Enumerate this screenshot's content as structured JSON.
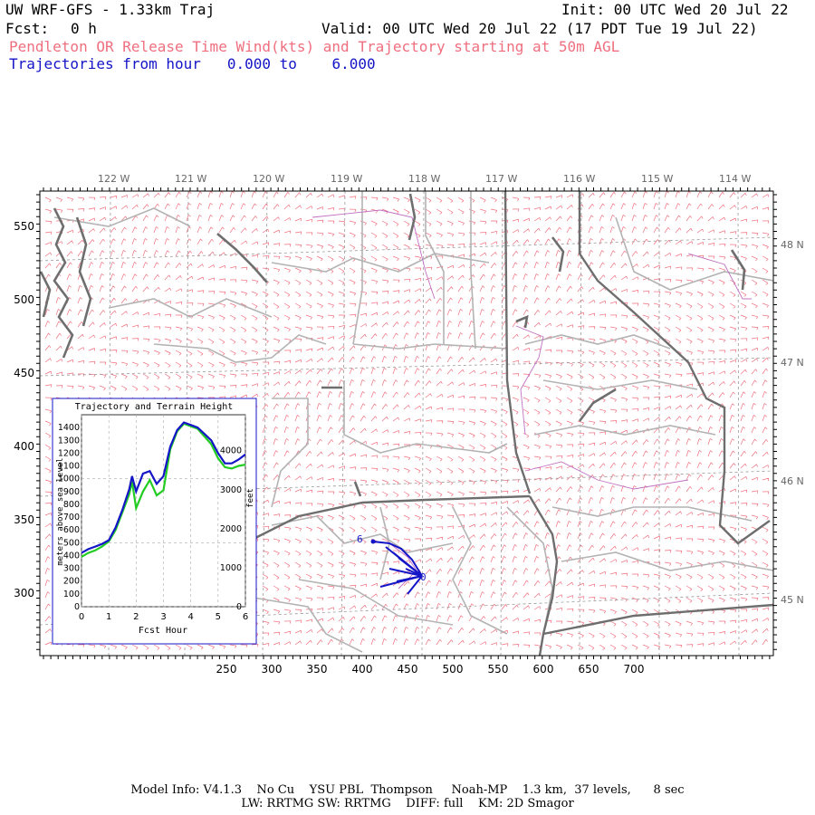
{
  "header": {
    "title": "UW WRF-GFS - 1.33km Traj",
    "init": "Init: 00 UTC Wed 20 Jul 22",
    "fcst_label": "Fcst:",
    "fcst_value": "0 h",
    "valid": "Valid: 00 UTC Wed 20 Jul 22 (17 PDT Tue 19 Jul 22)",
    "subtitle_pink": "Pendleton OR Release Time Wind(kts) and Trajectory starting at 50m AGL",
    "subtitle_blue_prefix": "Trajectories from hour",
    "traj_from": "0.000",
    "traj_to_word": "to",
    "traj_to": "6.000"
  },
  "map": {
    "lon_labels": [
      "122 W",
      "121 W",
      "120 W",
      "119 W",
      "118 W",
      "117 W",
      "116 W",
      "115 W",
      "114 W"
    ],
    "lat_labels": [
      "48 N",
      "47 N",
      "46 N",
      "45 N"
    ],
    "x_ticks": [
      "250",
      "300",
      "350",
      "400",
      "450",
      "500",
      "550",
      "600",
      "650",
      "700"
    ],
    "y_ticks": [
      "550",
      "500",
      "450",
      "400",
      "350",
      "300"
    ],
    "trajectory_labels": [
      "6",
      "0"
    ],
    "colors": {
      "wind_barbs": "#ef6f7f",
      "trajectory": "#1515c8",
      "state_borders": "#6e6e6e",
      "county_borders": "#b3b3b3",
      "rivers": "#c070c0",
      "grid": "#9a9a9a"
    }
  },
  "inset": {
    "title": "Trajectory and Terrain Height",
    "ylabel_left": "meters above sea level",
    "ylabel_right": "feet",
    "xlabel": "Fcst Hour"
  },
  "chart_data": {
    "type": "line",
    "title": "Trajectory and Terrain Height",
    "xlabel": "Fcst Hour",
    "ylabel": "meters above sea level",
    "ylabel_right": "feet",
    "xlim": [
      0,
      6
    ],
    "ylim": [
      0,
      1500
    ],
    "x_ticks": [
      "0",
      "1",
      "2",
      "3",
      "4",
      "5",
      "6"
    ],
    "y_ticks": [
      "0",
      "100",
      "200",
      "300",
      "400",
      "500",
      "600",
      "700",
      "800",
      "900",
      "1000",
      "1100",
      "1200",
      "1300",
      "1400"
    ],
    "y2_ticks": [
      "0",
      "1000",
      "2000",
      "3000",
      "4000"
    ],
    "grid": true,
    "series": [
      {
        "color": "#1515c8",
        "x": [
          0,
          0.25,
          0.5,
          0.75,
          1.0,
          1.25,
          1.5,
          1.75,
          1.85,
          2.0,
          2.25,
          2.5,
          2.75,
          3.0,
          3.25,
          3.5,
          3.75,
          4.0,
          4.25,
          4.5,
          4.75,
          5.0,
          5.25,
          5.5,
          5.75,
          6.0
        ],
        "y": [
          420,
          450,
          470,
          490,
          520,
          620,
          760,
          920,
          1020,
          900,
          1040,
          1060,
          960,
          1020,
          1250,
          1380,
          1440,
          1420,
          1400,
          1350,
          1300,
          1200,
          1120,
          1120,
          1150,
          1190
        ]
      },
      {
        "color": "#22cc22",
        "x": [
          0,
          0.25,
          0.5,
          0.75,
          1.0,
          1.25,
          1.5,
          1.75,
          1.85,
          2.0,
          2.25,
          2.5,
          2.75,
          3.0,
          3.25,
          3.5,
          3.75,
          4.0,
          4.25,
          4.5,
          4.75,
          5.0,
          5.25,
          5.5,
          5.75,
          6.0
        ],
        "y": [
          390,
          420,
          440,
          470,
          510,
          600,
          740,
          880,
          980,
          770,
          900,
          990,
          870,
          910,
          1230,
          1370,
          1430,
          1410,
          1390,
          1330,
          1270,
          1160,
          1090,
          1080,
          1100,
          1110
        ]
      }
    ]
  },
  "footer": {
    "line1": "Model Info: V4.1.3    No Cu    YSU PBL  Thompson     Noah-MP    1.3 km,  37 levels,      8 sec",
    "line2": "LW: RRTMG SW: RRTMG    DIFF: full    KM: 2D Smagor"
  }
}
